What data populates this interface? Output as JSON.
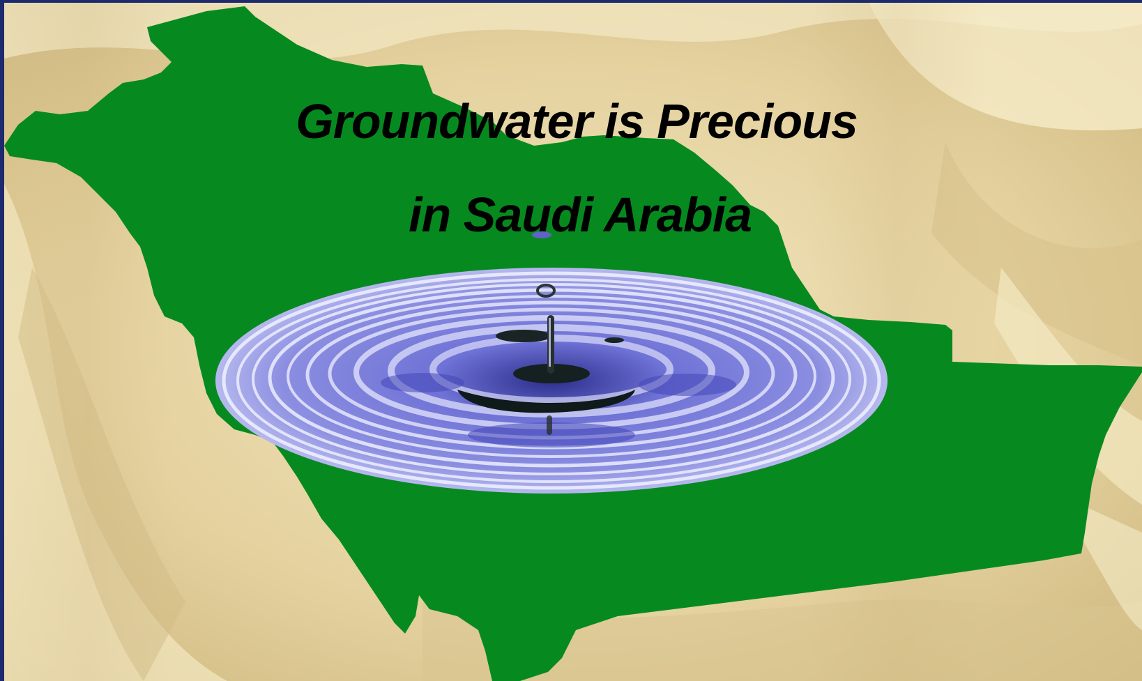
{
  "slide": {
    "title_line_1": "Groundwater is Precious",
    "title_line_2": "in Saudi Arabia"
  },
  "colors": {
    "frame": "#1e2a6e",
    "fabric_light": "#f2e6bf",
    "fabric_dark": "#c9b07a",
    "map_green": "#068a1f",
    "water_blue": "#5a5cc8",
    "water_light": "#e6e8ff",
    "title_text": "#000000"
  },
  "icons": {
    "background": "fabric-background",
    "map": "saudi-arabia-map",
    "ripple": "water-drop-ripple"
  }
}
